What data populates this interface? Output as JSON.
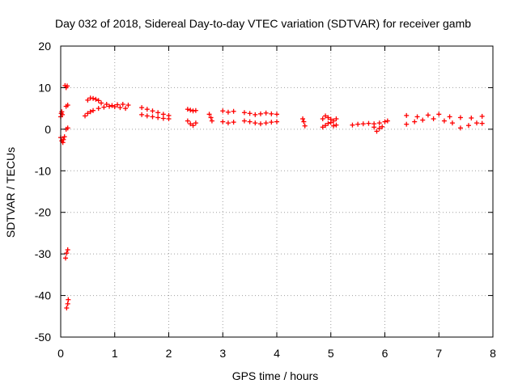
{
  "chart_data": {
    "type": "scatter",
    "title": "Day 032 of 2018, Sidereal Day-to-day VTEC variation (SDTVAR) for receiver gamb",
    "xlabel": "GPS time / hours",
    "ylabel": "SDTVAR / TECUs",
    "xlim": [
      0,
      8
    ],
    "ylim": [
      -50,
      20
    ],
    "xticks": [
      "0",
      "1",
      "2",
      "3",
      "4",
      "5",
      "6",
      "7",
      "8"
    ],
    "yticks": [
      "-50",
      "-40",
      "-30",
      "-20",
      "-10",
      "0",
      "10",
      "20"
    ],
    "grid": "dotted",
    "marker": "plus",
    "series": [
      {
        "color": "#ff0000",
        "points": [
          [
            0.0,
            3.0
          ],
          [
            0.01,
            3.8
          ],
          [
            0.02,
            4.2
          ],
          [
            0.03,
            3.5
          ],
          [
            0.0,
            -2.0
          ],
          [
            0.02,
            -2.8
          ],
          [
            0.04,
            -3.2
          ],
          [
            0.05,
            -2.5
          ],
          [
            0.07,
            -1.8
          ],
          [
            0.08,
            10.5
          ],
          [
            0.1,
            10.0
          ],
          [
            0.12,
            10.4
          ],
          [
            0.1,
            5.5
          ],
          [
            0.13,
            5.8
          ],
          [
            0.1,
            0.0
          ],
          [
            0.13,
            0.3
          ],
          [
            0.09,
            -31.0
          ],
          [
            0.11,
            -29.8
          ],
          [
            0.13,
            -29.0
          ],
          [
            0.11,
            -43.0
          ],
          [
            0.13,
            -42.0
          ],
          [
            0.14,
            -41.0
          ],
          [
            0.45,
            3.2
          ],
          [
            0.5,
            3.8
          ],
          [
            0.55,
            4.2
          ],
          [
            0.6,
            4.5
          ],
          [
            0.7,
            5.0
          ],
          [
            0.8,
            5.3
          ],
          [
            0.9,
            5.5
          ],
          [
            1.0,
            5.4
          ],
          [
            1.1,
            5.2
          ],
          [
            1.2,
            5.0
          ],
          [
            0.5,
            7.0
          ],
          [
            0.55,
            7.5
          ],
          [
            0.6,
            7.4
          ],
          [
            0.65,
            7.2
          ],
          [
            0.7,
            6.9
          ],
          [
            0.75,
            6.3
          ],
          [
            0.85,
            6.0
          ],
          [
            0.95,
            5.7
          ],
          [
            1.05,
            5.9
          ],
          [
            1.15,
            6.0
          ],
          [
            1.25,
            5.8
          ],
          [
            1.5,
            5.2
          ],
          [
            1.6,
            4.8
          ],
          [
            1.7,
            4.4
          ],
          [
            1.8,
            4.0
          ],
          [
            1.9,
            3.6
          ],
          [
            2.0,
            3.3
          ],
          [
            1.5,
            3.5
          ],
          [
            1.6,
            3.2
          ],
          [
            1.7,
            3.0
          ],
          [
            1.8,
            2.8
          ],
          [
            1.9,
            2.6
          ],
          [
            2.0,
            2.5
          ],
          [
            2.35,
            4.8
          ],
          [
            2.4,
            4.6
          ],
          [
            2.45,
            4.4
          ],
          [
            2.5,
            4.5
          ],
          [
            2.35,
            2.0
          ],
          [
            2.4,
            1.3
          ],
          [
            2.45,
            0.9
          ],
          [
            2.5,
            1.5
          ],
          [
            2.75,
            3.6
          ],
          [
            2.78,
            2.8
          ],
          [
            2.8,
            2.0
          ],
          [
            3.0,
            4.4
          ],
          [
            3.1,
            4.1
          ],
          [
            3.2,
            4.3
          ],
          [
            3.0,
            1.8
          ],
          [
            3.1,
            1.5
          ],
          [
            3.2,
            1.7
          ],
          [
            3.4,
            4.0
          ],
          [
            3.5,
            3.8
          ],
          [
            3.6,
            3.5
          ],
          [
            3.7,
            3.7
          ],
          [
            3.8,
            3.9
          ],
          [
            3.9,
            3.7
          ],
          [
            4.0,
            3.6
          ],
          [
            3.4,
            2.0
          ],
          [
            3.5,
            1.8
          ],
          [
            3.6,
            1.5
          ],
          [
            3.7,
            1.3
          ],
          [
            3.8,
            1.5
          ],
          [
            3.9,
            1.7
          ],
          [
            4.0,
            1.8
          ],
          [
            4.48,
            2.5
          ],
          [
            4.5,
            1.8
          ],
          [
            4.52,
            0.8
          ],
          [
            4.85,
            2.5
          ],
          [
            4.9,
            3.2
          ],
          [
            4.95,
            2.8
          ],
          [
            5.0,
            2.4
          ],
          [
            5.05,
            2.0
          ],
          [
            5.1,
            2.5
          ],
          [
            4.85,
            0.5
          ],
          [
            4.9,
            0.9
          ],
          [
            4.95,
            1.4
          ],
          [
            5.0,
            1.6
          ],
          [
            5.05,
            0.8
          ],
          [
            5.1,
            1.0
          ],
          [
            5.4,
            1.0
          ],
          [
            5.5,
            1.2
          ],
          [
            5.6,
            1.3
          ],
          [
            5.7,
            1.4
          ],
          [
            5.8,
            1.3
          ],
          [
            5.9,
            1.5
          ],
          [
            6.0,
            1.8
          ],
          [
            6.05,
            2.0
          ],
          [
            5.8,
            0.5
          ],
          [
            5.85,
            -0.5
          ],
          [
            5.9,
            0.2
          ],
          [
            5.95,
            0.6
          ],
          [
            6.4,
            3.3
          ],
          [
            6.6,
            3.0
          ],
          [
            6.8,
            3.4
          ],
          [
            7.0,
            3.6
          ],
          [
            7.2,
            3.0
          ],
          [
            7.4,
            2.8
          ],
          [
            7.6,
            2.7
          ],
          [
            7.8,
            3.1
          ],
          [
            6.4,
            1.2
          ],
          [
            6.55,
            1.8
          ],
          [
            6.7,
            2.2
          ],
          [
            6.9,
            2.5
          ],
          [
            7.1,
            2.0
          ],
          [
            7.25,
            1.5
          ],
          [
            7.4,
            0.3
          ],
          [
            7.55,
            0.9
          ],
          [
            7.7,
            1.5
          ],
          [
            7.8,
            1.4
          ]
        ]
      }
    ]
  }
}
